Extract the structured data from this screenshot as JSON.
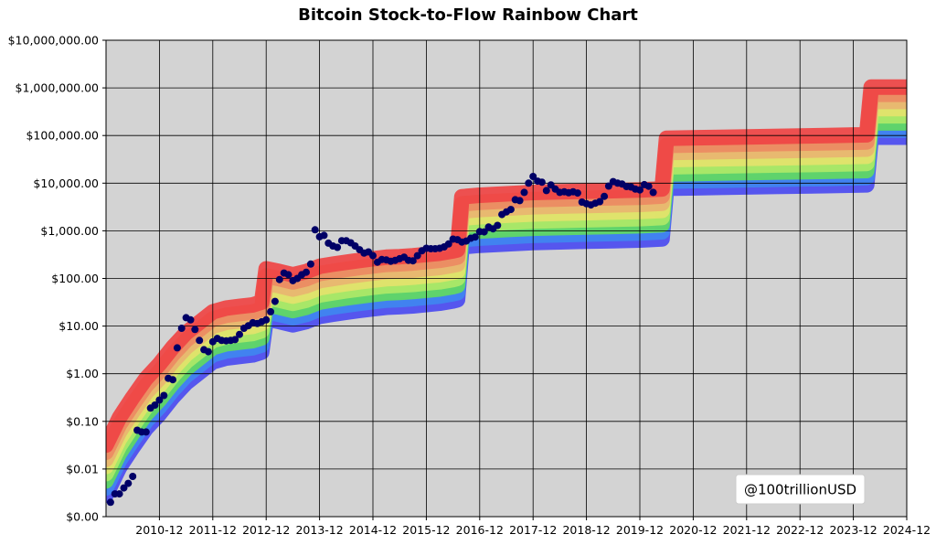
{
  "chart_data": {
    "type": "scatter",
    "title": "Bitcoin Stock-to-Flow Rainbow Chart",
    "xlabel": "",
    "ylabel": "",
    "y_scale": "log",
    "ylim": [
      0.001,
      10000000
    ],
    "xlim": [
      "2009-12-01",
      "2024-12-01"
    ],
    "grid": true,
    "watermark": "@100trillionUSD",
    "watermark_position": "bottom-right",
    "y_ticks": [
      {
        "value": 0.001,
        "label": "$0.00"
      },
      {
        "value": 0.01,
        "label": "$0.01"
      },
      {
        "value": 0.1,
        "label": "$0.10"
      },
      {
        "value": 1,
        "label": "$1.00"
      },
      {
        "value": 10,
        "label": "$10.00"
      },
      {
        "value": 100,
        "label": "$100.00"
      },
      {
        "value": 1000,
        "label": "$1,000.00"
      },
      {
        "value": 10000,
        "label": "$10,000.00"
      },
      {
        "value": 100000,
        "label": "$100,000.00"
      },
      {
        "value": 1000000,
        "label": "$1,000,000.00"
      },
      {
        "value": 10000000,
        "label": "$10,000,000.00"
      }
    ],
    "x_ticks": [
      "2010-12",
      "2011-12",
      "2012-12",
      "2013-12",
      "2014-12",
      "2015-12",
      "2016-12",
      "2017-12",
      "2018-12",
      "2019-12",
      "2020-12",
      "2021-12",
      "2022-12",
      "2023-12",
      "2024-12"
    ],
    "colors": {
      "plot_background": "#d3d3d3",
      "grid": "#000000",
      "points": "#000066",
      "bands": [
        "#4b4bf0",
        "#3f86f0",
        "#61d961",
        "#aee868",
        "#e3e36b",
        "#e8b570",
        "#eb8a62",
        "#ef4444"
      ]
    },
    "band_offsets_log10": [
      -0.45,
      -0.3,
      -0.15,
      0,
      0.15,
      0.3,
      0.45,
      0.6
    ],
    "s2f_model": {
      "name": "",
      "x": [
        "2009-12",
        "2010-03",
        "2010-06",
        "2010-09",
        "2010-12",
        "2011-03",
        "2011-06",
        "2011-09",
        "2011-12",
        "2012-03",
        "2012-06",
        "2012-09",
        "2012-11",
        "2012-12",
        "2013-03",
        "2013-06",
        "2013-09",
        "2013-12",
        "2014-03",
        "2014-06",
        "2014-09",
        "2014-12",
        "2015-03",
        "2015-06",
        "2015-09",
        "2015-12",
        "2016-03",
        "2016-06",
        "2016-07",
        "2016-08",
        "2016-12",
        "2017-06",
        "2017-12",
        "2018-06",
        "2018-12",
        "2019-06",
        "2019-12",
        "2020-05",
        "2020-06",
        "2021-06",
        "2022-06",
        "2023-06",
        "2024-03",
        "2024-04",
        "2024-12"
      ],
      "values": [
        0.008,
        0.03,
        0.08,
        0.2,
        0.4,
        0.9,
        1.8,
        3,
        5,
        6,
        6.5,
        7,
        8,
        40,
        35,
        30,
        35,
        45,
        50,
        55,
        60,
        65,
        70,
        72,
        75,
        80,
        85,
        95,
        100,
        1300,
        1400,
        1500,
        1600,
        1650,
        1700,
        1750,
        1800,
        1900,
        22000,
        23000,
        24000,
        25000,
        26000,
        260000,
        260000
      ]
    },
    "series": [
      {
        "name": "",
        "x": [
          "2010-01",
          "2010-02",
          "2010-03",
          "2010-04",
          "2010-05",
          "2010-06",
          "2010-07",
          "2010-08",
          "2010-09",
          "2010-10",
          "2010-11",
          "2010-12",
          "2011-01",
          "2011-02",
          "2011-03",
          "2011-04",
          "2011-05",
          "2011-06",
          "2011-07",
          "2011-08",
          "2011-09",
          "2011-10",
          "2011-11",
          "2011-12",
          "2012-01",
          "2012-02",
          "2012-03",
          "2012-04",
          "2012-05",
          "2012-06",
          "2012-07",
          "2012-08",
          "2012-09",
          "2012-10",
          "2012-11",
          "2012-12",
          "2013-01",
          "2013-02",
          "2013-03",
          "2013-04",
          "2013-05",
          "2013-06",
          "2013-07",
          "2013-08",
          "2013-09",
          "2013-10",
          "2013-11",
          "2013-12",
          "2014-01",
          "2014-02",
          "2014-03",
          "2014-04",
          "2014-05",
          "2014-06",
          "2014-07",
          "2014-08",
          "2014-09",
          "2014-10",
          "2014-11",
          "2014-12",
          "2015-01",
          "2015-02",
          "2015-03",
          "2015-04",
          "2015-05",
          "2015-06",
          "2015-07",
          "2015-08",
          "2015-09",
          "2015-10",
          "2015-11",
          "2015-12",
          "2016-01",
          "2016-02",
          "2016-03",
          "2016-04",
          "2016-05",
          "2016-06",
          "2016-07",
          "2016-08",
          "2016-09",
          "2016-10",
          "2016-11",
          "2016-12",
          "2017-01",
          "2017-02",
          "2017-03",
          "2017-04",
          "2017-05",
          "2017-06",
          "2017-07",
          "2017-08",
          "2017-09",
          "2017-10",
          "2017-11",
          "2017-12",
          "2018-01",
          "2018-02",
          "2018-03",
          "2018-04",
          "2018-05",
          "2018-06",
          "2018-07",
          "2018-08",
          "2018-09",
          "2018-10",
          "2018-11",
          "2018-12",
          "2019-01",
          "2019-02",
          "2019-03",
          "2019-04",
          "2019-05",
          "2019-06",
          "2019-07",
          "2019-08",
          "2019-09",
          "2019-10",
          "2019-11",
          "2019-12",
          "2020-01",
          "2020-02",
          "2020-03"
        ],
        "values": [
          0.002,
          0.003,
          0.003,
          0.004,
          0.005,
          0.007,
          0.065,
          0.06,
          0.06,
          0.19,
          0.22,
          0.28,
          0.35,
          0.8,
          0.75,
          3.5,
          9,
          15,
          13.5,
          8.5,
          5,
          3.2,
          2.9,
          4.7,
          5.5,
          5,
          4.9,
          5,
          5.2,
          6.7,
          9,
          10.2,
          11.8,
          11.3,
          12.3,
          13.5,
          20,
          33,
          95,
          130,
          120,
          90,
          100,
          120,
          135,
          200,
          1050,
          750,
          800,
          550,
          480,
          450,
          620,
          620,
          560,
          480,
          400,
          340,
          360,
          300,
          220,
          250,
          245,
          230,
          240,
          260,
          280,
          240,
          235,
          300,
          380,
          430,
          420,
          420,
          430,
          460,
          530,
          670,
          650,
          580,
          610,
          700,
          740,
          960,
          950,
          1200,
          1100,
          1300,
          2200,
          2500,
          2800,
          4500,
          4300,
          6400,
          10000,
          13800,
          11000,
          10500,
          7000,
          9200,
          7500,
          6400,
          6600,
          6300,
          6600,
          6200,
          4000,
          3700,
          3500,
          3800,
          4100,
          5300,
          8700,
          10800,
          10000,
          9600,
          8500,
          8300,
          7500,
          7200,
          9300,
          8600,
          6400
        ]
      }
    ]
  }
}
